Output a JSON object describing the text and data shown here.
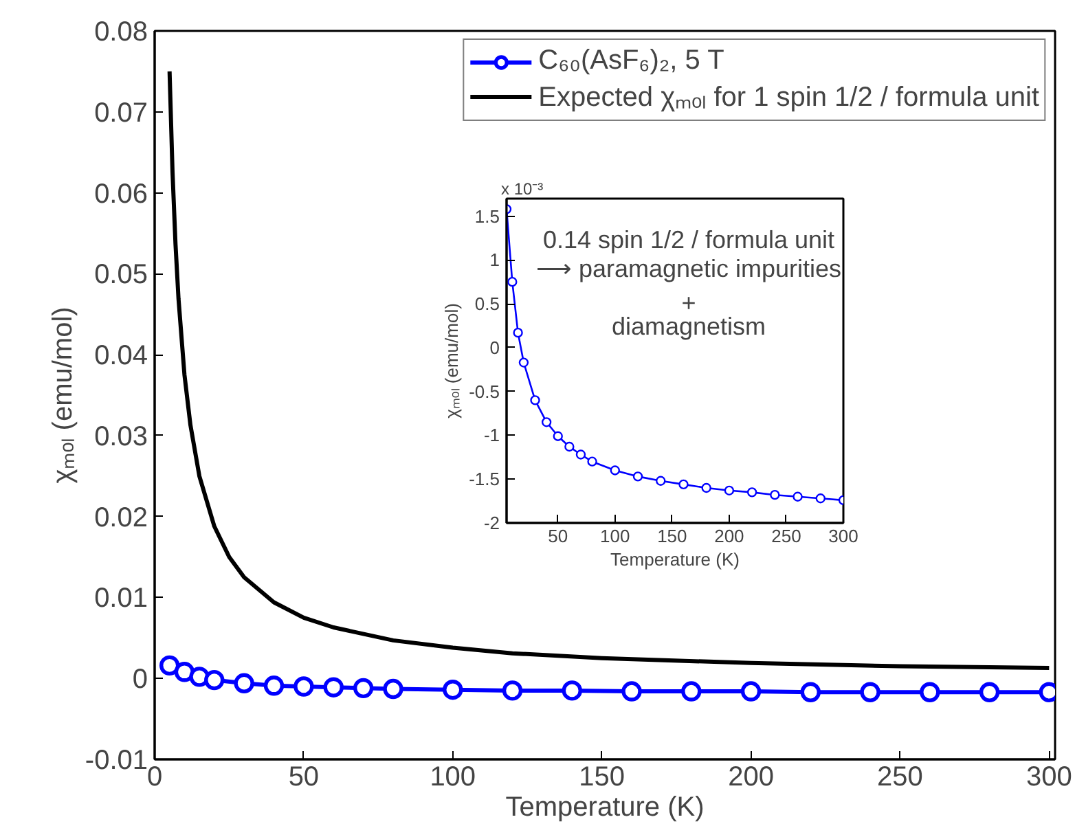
{
  "chart_data": [
    {
      "type": "line",
      "xlabel": "Temperature (K)",
      "ylabel": "χₘₒₗ (emu/mol)",
      "xlim": [
        0,
        302
      ],
      "ylim": [
        -0.01,
        0.08
      ],
      "xticks": [
        0,
        50,
        100,
        150,
        200,
        250,
        300
      ],
      "yticks": [
        -0.01,
        0,
        0.01,
        0.02,
        0.03,
        0.04,
        0.05,
        0.06,
        0.07,
        0.08
      ],
      "grid": false,
      "legend": "top right",
      "series": [
        {
          "name": "C₆₀(AsF₆)₂, 5 T",
          "color": "#0000ff",
          "marker": "circle",
          "x": [
            5,
            10,
            15,
            20,
            30,
            40,
            50,
            60,
            70,
            80,
            100,
            120,
            140,
            160,
            180,
            200,
            220,
            240,
            260,
            280,
            300
          ],
          "values": [
            0.0016,
            0.0008,
            0.0002,
            -0.0002,
            -0.0006,
            -0.0009,
            -0.001,
            -0.0011,
            -0.0012,
            -0.0013,
            -0.0014,
            -0.0015,
            -0.0015,
            -0.0016,
            -0.0016,
            -0.0016,
            -0.0017,
            -0.0017,
            -0.0017,
            -0.0017,
            -0.0017
          ]
        },
        {
          "name": "Expected χₘₒₗ for 1 spin 1/2 / formula unit",
          "color": "#000000",
          "marker": "none",
          "x": [
            5,
            6,
            7,
            8,
            10,
            12,
            15,
            20,
            25,
            30,
            40,
            50,
            60,
            80,
            100,
            120,
            150,
            200,
            250,
            300
          ],
          "values": [
            0.075,
            0.0625,
            0.0536,
            0.0469,
            0.0375,
            0.0313,
            0.025,
            0.0188,
            0.015,
            0.0125,
            0.0094,
            0.0075,
            0.0063,
            0.0047,
            0.0038,
            0.0031,
            0.0025,
            0.0019,
            0.0015,
            0.0013
          ]
        }
      ]
    },
    {
      "type": "line",
      "xlabel": "Temperature (K)",
      "ylabel": "χₘₒₗ (emu/mol)",
      "xlim": [
        5,
        300
      ],
      "ylim": [
        -2,
        1.7
      ],
      "xticks": [
        50,
        100,
        150,
        200,
        250,
        300
      ],
      "yticks": [
        -2,
        -1.5,
        -1,
        -0.5,
        0,
        0.5,
        1,
        1.5
      ],
      "grid": false,
      "legend": false,
      "annotations": [
        "x 10⁻³",
        "0.14 spin 1/2 / formula unit",
        "⟶ paramagnetic impurities",
        "+",
        "diamagnetism"
      ],
      "series": [
        {
          "color": "#0000ff",
          "marker": "circle",
          "x": [
            5,
            10,
            15,
            20,
            30,
            40,
            50,
            60,
            70,
            80,
            100,
            120,
            140,
            160,
            180,
            200,
            220,
            240,
            260,
            280,
            300
          ],
          "values": [
            1.58,
            0.75,
            0.17,
            -0.17,
            -0.6,
            -0.85,
            -1.01,
            -1.13,
            -1.22,
            -1.3,
            -1.4,
            -1.47,
            -1.52,
            -1.56,
            -1.6,
            -1.63,
            -1.65,
            -1.68,
            -1.7,
            -1.72,
            -1.74
          ]
        }
      ]
    }
  ]
}
